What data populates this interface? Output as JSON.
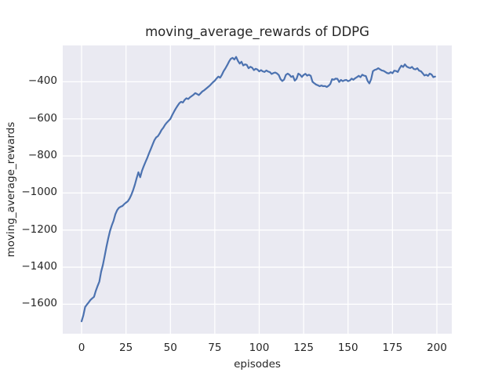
{
  "chart_data": {
    "type": "line",
    "title": "moving_average_rewards of DDPG",
    "xlabel": "episodes",
    "ylabel": "moving_average_rewards",
    "x_start": 0,
    "x_step": 1,
    "values": [
      -1692,
      -1660,
      -1615,
      -1602,
      -1590,
      -1577,
      -1568,
      -1560,
      -1528,
      -1502,
      -1478,
      -1425,
      -1388,
      -1340,
      -1290,
      -1245,
      -1205,
      -1175,
      -1150,
      -1115,
      -1093,
      -1080,
      -1074,
      -1070,
      -1060,
      -1052,
      -1045,
      -1030,
      -1010,
      -985,
      -955,
      -920,
      -888,
      -915,
      -880,
      -855,
      -832,
      -810,
      -785,
      -762,
      -738,
      -715,
      -700,
      -693,
      -678,
      -660,
      -648,
      -632,
      -620,
      -610,
      -600,
      -580,
      -562,
      -545,
      -530,
      -516,
      -508,
      -512,
      -498,
      -489,
      -493,
      -484,
      -477,
      -470,
      -461,
      -466,
      -472,
      -462,
      -452,
      -446,
      -438,
      -430,
      -422,
      -412,
      -402,
      -394,
      -382,
      -372,
      -378,
      -362,
      -342,
      -327,
      -310,
      -291,
      -276,
      -271,
      -280,
      -266,
      -287,
      -302,
      -292,
      -312,
      -306,
      -309,
      -327,
      -319,
      -324,
      -337,
      -330,
      -334,
      -344,
      -337,
      -344,
      -347,
      -339,
      -345,
      -348,
      -358,
      -353,
      -350,
      -355,
      -364,
      -386,
      -396,
      -388,
      -363,
      -356,
      -362,
      -374,
      -369,
      -394,
      -384,
      -356,
      -362,
      -374,
      -363,
      -357,
      -367,
      -362,
      -368,
      -400,
      -408,
      -415,
      -419,
      -424,
      -420,
      -424,
      -423,
      -428,
      -422,
      -412,
      -386,
      -389,
      -383,
      -384,
      -401,
      -390,
      -397,
      -392,
      -390,
      -397,
      -393,
      -383,
      -389,
      -381,
      -375,
      -368,
      -375,
      -362,
      -367,
      -369,
      -395,
      -409,
      -386,
      -343,
      -336,
      -333,
      -327,
      -333,
      -339,
      -341,
      -347,
      -353,
      -355,
      -348,
      -354,
      -340,
      -342,
      -347,
      -328,
      -313,
      -320,
      -306,
      -318,
      -323,
      -326,
      -320,
      -331,
      -333,
      -327,
      -340,
      -343,
      -354,
      -366,
      -362,
      -368,
      -356,
      -361,
      -375,
      -372
    ],
    "xlim": [
      -10.6,
      208.4
    ],
    "ylim": [
      -1759,
      -204
    ],
    "xticks": [
      0,
      25,
      50,
      75,
      100,
      125,
      150,
      175,
      200
    ],
    "yticks": [
      -400,
      -600,
      -800,
      -1000,
      -1200,
      -1400,
      -1600
    ],
    "grid": true,
    "legend": null,
    "colors": {
      "line": "#4C72B0",
      "plot_bg": "#EAEAF2",
      "grid": "#FFFFFF",
      "text": "#262626",
      "figure_bg": "#FFFFFF"
    }
  }
}
